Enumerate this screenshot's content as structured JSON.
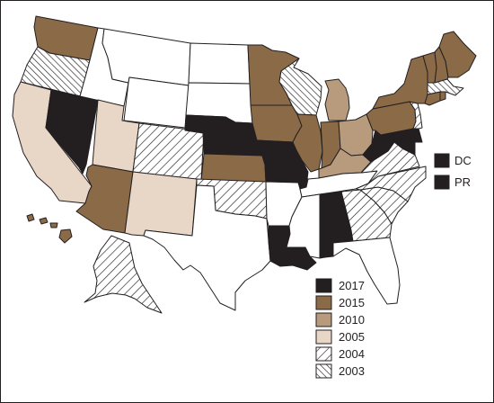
{
  "colors": {
    "y2017": "#231f20",
    "y2015": "#8b6a47",
    "y2010": "#b89a7c",
    "y2005": "#e8d6c6",
    "hatch_line": "#231f20",
    "none": "#ffffff",
    "stroke": "#231f20"
  },
  "legend": {
    "items": [
      {
        "label": "2017",
        "fill": "y2017"
      },
      {
        "label": "2015",
        "fill": "y2015"
      },
      {
        "label": "2010",
        "fill": "y2010"
      },
      {
        "label": "2005",
        "fill": "y2005"
      },
      {
        "label": "2004",
        "fill": "hatch-fwd"
      },
      {
        "label": "2003",
        "fill": "hatch-back"
      }
    ]
  },
  "territories": [
    {
      "label": "DC",
      "fill": "y2017"
    },
    {
      "label": "PR",
      "fill": "y2017"
    }
  ],
  "states": {
    "WA": "y2015",
    "OR": "hatch-back",
    "CA": "y2005",
    "NV": "y2017",
    "ID": "none",
    "MT": "none",
    "WY": "none",
    "UT": "y2005",
    "AZ": "y2015",
    "CO": "hatch-fwd",
    "NM": "y2005",
    "ND": "none",
    "SD": "none",
    "NE": "y2017",
    "KS": "y2015",
    "OK": "hatch-fwd",
    "TX": "none",
    "MN": "y2015",
    "IA": "y2015",
    "MO": "y2017",
    "AR": "none",
    "LA": "y2017",
    "WI": "hatch-back",
    "IL": "y2015",
    "MI": "y2010",
    "IN": "y2015",
    "OH": "y2010",
    "KY": "y2010",
    "TN": "none",
    "MS": "none",
    "AL": "y2017",
    "GA": "hatch-fwd",
    "FL": "none",
    "SC": "hatch-fwd",
    "NC": "hatch-fwd",
    "VA": "hatch-fwd",
    "WV": "y2017",
    "MD": "y2017",
    "DE": "y2017",
    "PA": "y2015",
    "NJ": "hatch-fwd",
    "NY": "y2015",
    "CT": "y2015",
    "RI": "y2015",
    "MA": "hatch-back",
    "VT": "y2015",
    "NH": "y2015",
    "ME": "y2015",
    "AK": "hatch-fwd",
    "HI": "y2015"
  }
}
